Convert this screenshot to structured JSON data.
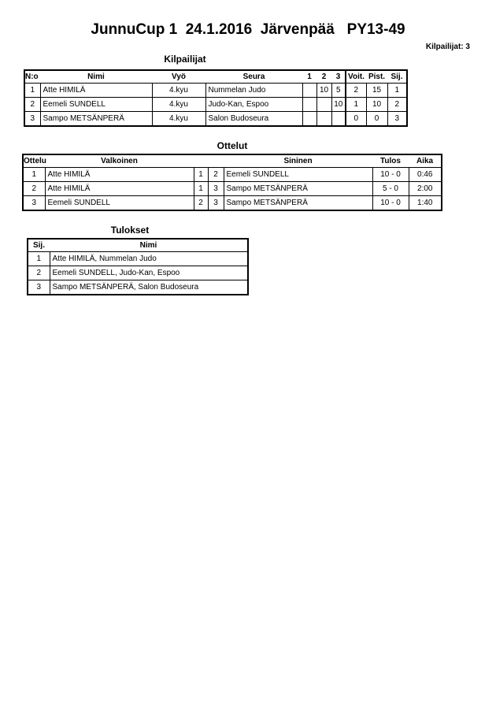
{
  "title": "JunnuCup 1  24.1.2016  Järvenpää   PY13-49",
  "competitor_count": "Kilpailijat: 3",
  "competitors": {
    "heading": "Kilpailijat",
    "columns": [
      "N:o",
      "Nimi",
      "Vyö",
      "Seura",
      "1",
      "2",
      "3",
      "Voit.",
      "Pist.",
      "Sij."
    ],
    "rows": [
      [
        "1",
        "Atte HIMILÄ",
        "4.kyu",
        "Nummelan Judo",
        "",
        "10",
        "5",
        "2",
        "15",
        "1"
      ],
      [
        "2",
        "Eemeli SUNDELL",
        "4.kyu",
        "Judo-Kan, Espoo",
        "",
        "",
        "10",
        "1",
        "10",
        "2"
      ],
      [
        "3",
        "Sampo METSÄNPERÄ",
        "4.kyu",
        "Salon Budoseura",
        "",
        "",
        "",
        "0",
        "0",
        "3"
      ]
    ]
  },
  "matches": {
    "heading": "Ottelut",
    "columns": [
      "Ottelu",
      "Valkoinen",
      "Sininen",
      "Tulos",
      "Aika"
    ],
    "rows": [
      [
        "1",
        "Atte HIMILÄ",
        "1",
        "2",
        "Eemeli SUNDELL",
        "10 - 0",
        "0:46"
      ],
      [
        "2",
        "Atte HIMILÄ",
        "1",
        "3",
        "Sampo METSÄNPERÄ",
        "5 - 0",
        "2:00"
      ],
      [
        "3",
        "Eemeli SUNDELL",
        "2",
        "3",
        "Sampo METSÄNPERÄ",
        "10 - 0",
        "1:40"
      ]
    ]
  },
  "results": {
    "heading": "Tulokset",
    "columns": [
      "Sij.",
      "Nimi"
    ],
    "rows": [
      [
        "1",
        "Atte HIMILÄ, Nummelan Judo"
      ],
      [
        "2",
        "Eemeli SUNDELL, Judo-Kan, Espoo"
      ],
      [
        "3",
        "Sampo METSÄNPERÄ, Salon Budoseura"
      ]
    ]
  }
}
